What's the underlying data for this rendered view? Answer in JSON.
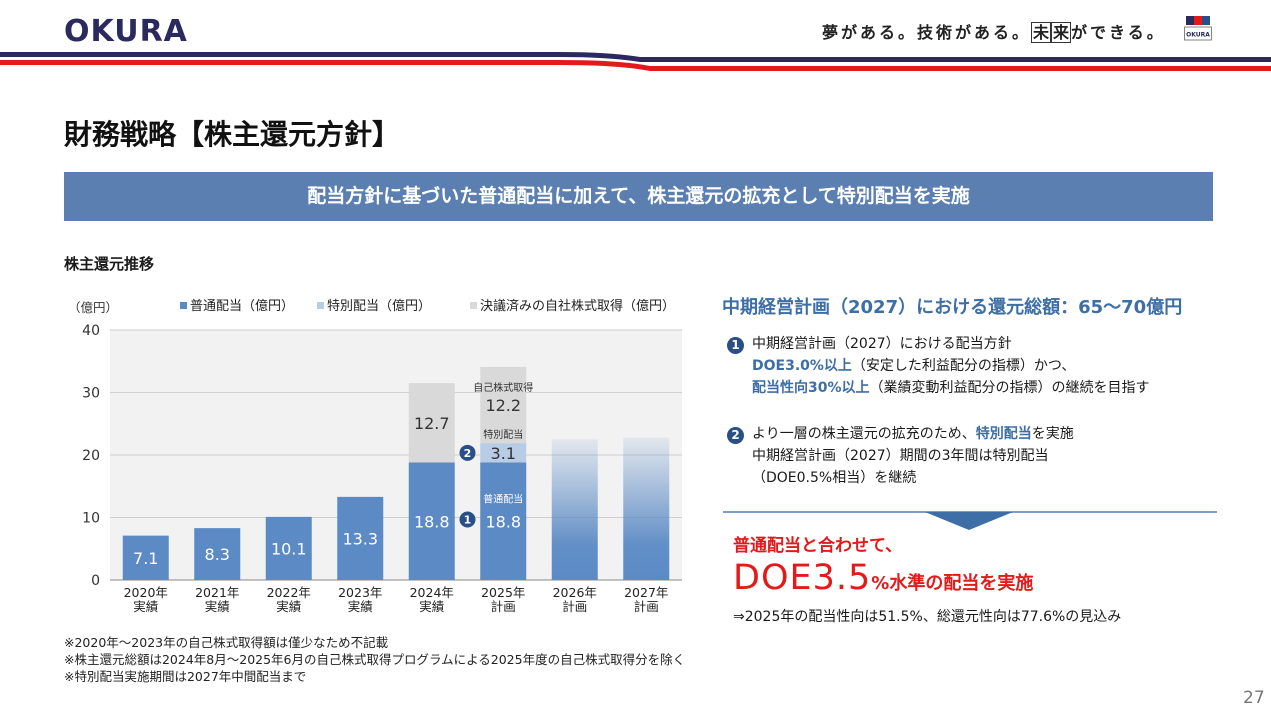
{
  "header": {
    "logo": "OKURA",
    "slogan_pre": "夢がある。技術がある。",
    "slogan_box1": "未",
    "slogan_box2": "来",
    "slogan_post": "ができる。",
    "mini_logo": "OKURA"
  },
  "title": "財務戦略【株主還元方針】",
  "banner": "配当方針に基づいた普通配当に加えて、株主還元の拡充として特別配当を実施",
  "section_label": "株主還元推移",
  "chart_data": {
    "type": "bar",
    "stacked": true,
    "unit_label": "（億円）",
    "ylim": [
      0,
      40
    ],
    "yticks": [
      0,
      10,
      20,
      30,
      40
    ],
    "grid": true,
    "legend_position": "top",
    "categories": [
      [
        "2020年",
        "実績"
      ],
      [
        "2021年",
        "実績"
      ],
      [
        "2022年",
        "実績"
      ],
      [
        "2023年",
        "実績"
      ],
      [
        "2024年",
        "実績"
      ],
      [
        "2025年",
        "計画"
      ],
      [
        "2026年",
        "計画"
      ],
      [
        "2027年",
        "計画"
      ]
    ],
    "series": [
      {
        "name": "普通配当（億円）",
        "color": "#5b8ac5",
        "values": [
          7.1,
          8.3,
          10.1,
          13.3,
          18.8,
          18.8,
          null,
          null
        ],
        "labels": [
          "7.1",
          "8.3",
          "10.1",
          "13.3",
          "18.8",
          "18.8",
          "",
          ""
        ]
      },
      {
        "name": "特別配当（億円）",
        "color": "#b7cde6",
        "values": [
          null,
          null,
          null,
          null,
          null,
          3.1,
          null,
          null
        ],
        "labels": [
          "",
          "",
          "",
          "",
          "",
          "3.1",
          "",
          ""
        ]
      },
      {
        "name": "決議済みの自社株式取得（億円）",
        "color": "#d9d9d9",
        "values": [
          null,
          null,
          null,
          null,
          12.7,
          12.2,
          null,
          null
        ],
        "labels": [
          "",
          "",
          "",
          "",
          "12.7",
          "12.2",
          "",
          ""
        ]
      }
    ],
    "plan_bars": {
      "color": "#5b8ac5",
      "values": [
        null,
        null,
        null,
        null,
        null,
        null,
        22.5,
        22.8
      ]
    },
    "annotations": {
      "buyback": "自己株式取得",
      "special": "特別配当",
      "regular": "普通配当",
      "marker_1": "1",
      "marker_2": "2"
    }
  },
  "right_panel": {
    "title": "中期経営計画（2027）における還元総額：65～70億円",
    "point1": {
      "marker": "1",
      "line1": "中期経営計画（2027）における配当方針",
      "line2_em": "DOE3.0%以上",
      "line2_rest": "（安定した利益配分の指標）かつ、",
      "line3_em": "配当性向30%以上",
      "line3_rest": "（業績変動利益配分の指標）の継続を目指す"
    },
    "point2": {
      "marker": "2",
      "line1_pre": "より一層の株主還元の拡充のため、",
      "line1_em": "特別配当",
      "line1_post": "を実施",
      "line2": "中期経営計画（2027）期間の3年間は特別配当",
      "line3": "（DOE0.5%相当）を継続"
    },
    "conclusion_line1": "普通配当と合わせて、",
    "conclusion_big": "DOE3.5",
    "conclusion_small": "%水準の配当を実施",
    "note": "⇒2025年の配当性向は51.5%、総還元性向は77.6%の見込み"
  },
  "footnotes": [
    "※2020年～2023年の自己株式取得額は僅少なため不記載",
    "※株主還元総額は2024年8月～2025年6月の自己株式取得プログラムによる2025年度の自己株式取得分を除く",
    "※特別配当実施期間は2027年中間配当まで"
  ],
  "page_number": "27",
  "colors": {
    "navy": "#2a2a5e",
    "red": "#e21a1a",
    "banner_blue": "#5b7fb1",
    "accent_blue": "#3d6ea6"
  }
}
